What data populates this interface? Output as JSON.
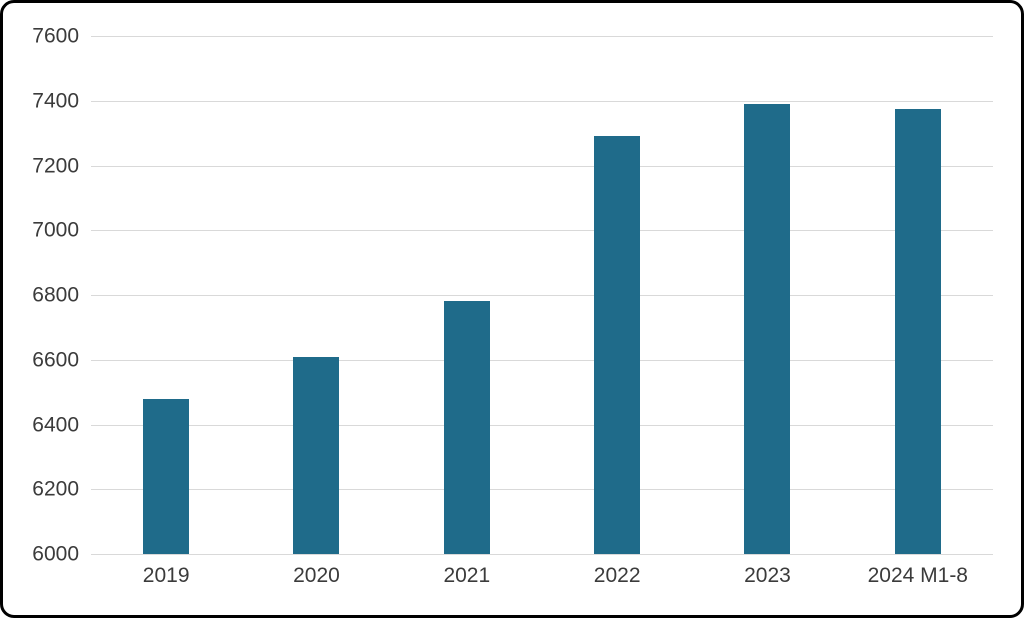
{
  "chart_data": {
    "type": "bar",
    "title": "",
    "xlabel": "",
    "ylabel": "",
    "categories": [
      "2019",
      "2020",
      "2021",
      "2022",
      "2023",
      "2024 M1-8"
    ],
    "values": [
      6480,
      6610,
      6780,
      7290,
      7390,
      7375
    ],
    "ylim": [
      6000,
      7600
    ],
    "yticks": [
      6000,
      6200,
      6400,
      6600,
      6800,
      7000,
      7200,
      7400,
      7600
    ],
    "grid": true,
    "legend_position": "none",
    "bar_color": "#1f6b8a",
    "gridline_color": "#d9d9d9",
    "text_color": "#3b3b3b",
    "background_color": "#ffffff",
    "border_color": "#000000"
  }
}
